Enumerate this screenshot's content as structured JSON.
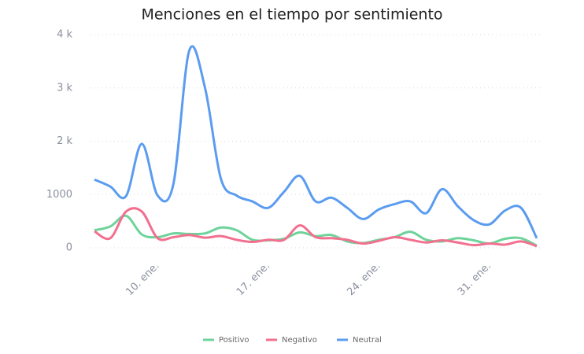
{
  "chart_data": {
    "type": "line",
    "title": "Menciones en el tiempo por sentimiento",
    "categories": [
      null,
      null,
      null,
      null,
      "10. ene.",
      null,
      null,
      null,
      null,
      null,
      null,
      "17. ene.",
      null,
      null,
      null,
      null,
      null,
      null,
      "24. ene.",
      null,
      null,
      null,
      null,
      null,
      null,
      "31. ene.",
      null,
      null,
      null
    ],
    "series": [
      {
        "name": "Positivo",
        "color": "#6ed39a",
        "values": [
          330,
          400,
          600,
          250,
          200,
          270,
          260,
          270,
          380,
          330,
          150,
          140,
          170,
          290,
          220,
          240,
          120,
          90,
          150,
          200,
          300,
          150,
          120,
          180,
          140,
          80,
          170,
          180,
          40
        ]
      },
      {
        "name": "Negativo",
        "color": "#f2708f",
        "values": [
          310,
          180,
          680,
          680,
          180,
          200,
          240,
          190,
          220,
          150,
          110,
          150,
          150,
          420,
          200,
          180,
          150,
          80,
          130,
          200,
          150,
          100,
          140,
          100,
          50,
          80,
          60,
          120,
          30
        ]
      },
      {
        "name": "Neutral",
        "color": "#5b9cf0",
        "values": [
          1280,
          1150,
          970,
          1950,
          980,
          1200,
          3700,
          3000,
          1300,
          980,
          870,
          750,
          1050,
          1350,
          870,
          940,
          750,
          540,
          720,
          820,
          870,
          650,
          1100,
          780,
          520,
          440,
          700,
          750,
          180
        ]
      }
    ],
    "ylim": [
      0,
      4000
    ],
    "yticks": [
      0,
      1000,
      {
        "value": 2000,
        "label": "2 k"
      },
      {
        "value": 3000,
        "label": "3 k"
      },
      {
        "value": 4000,
        "label": "4 k"
      }
    ],
    "grid": true
  }
}
